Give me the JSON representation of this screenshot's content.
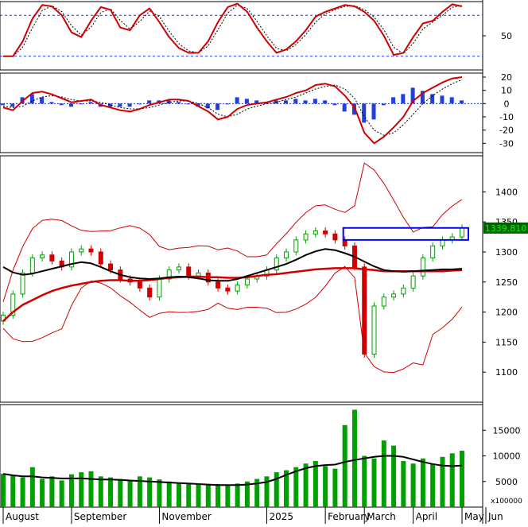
{
  "chart_data": {
    "type": "candlestick-multi-panel",
    "x_months": [
      "August",
      "September",
      "November",
      "2025",
      "February",
      "March",
      "April",
      "May",
      "Jun"
    ],
    "panels": [
      {
        "name": "stochastic",
        "y_ticks": [
          50
        ],
        "overbought": 80,
        "oversold": 20,
        "k_values": [
          20,
          20,
          42,
          75,
          95,
          93,
          80,
          55,
          48,
          72,
          92,
          88,
          62,
          58,
          80,
          90,
          70,
          48,
          32,
          25,
          25,
          42,
          70,
          92,
          97,
          85,
          62,
          42,
          25,
          30,
          42,
          58,
          78,
          85,
          90,
          95,
          93,
          85,
          72,
          50,
          22,
          25,
          48,
          68,
          72,
          85,
          96,
          93
        ]
      },
      {
        "name": "macd",
        "y_ticks": [
          20,
          10,
          0,
          -10,
          -20,
          -30
        ],
        "macd_values": [
          -3,
          -5,
          2,
          8,
          9,
          7,
          4,
          1,
          2,
          3,
          -1,
          -3,
          -5,
          -6,
          -4,
          -1,
          1,
          3,
          3,
          2,
          -2,
          -6,
          -12,
          -10,
          -4,
          -1,
          0,
          1,
          3,
          5,
          8,
          10,
          14,
          15,
          13,
          6,
          -3,
          -22,
          -30,
          -25,
          -18,
          -10,
          2,
          8,
          12,
          16,
          19,
          20
        ],
        "signal_values": [
          -2,
          -3,
          -2,
          2,
          5,
          6,
          5,
          3,
          2,
          2,
          1,
          -1,
          -3,
          -4,
          -4,
          -3,
          -1,
          1,
          2,
          2,
          0,
          -3,
          -8,
          -10,
          -8,
          -4,
          -2,
          0,
          1,
          3,
          5,
          8,
          11,
          13,
          14,
          11,
          4,
          -10,
          -20,
          -24,
          -22,
          -16,
          -8,
          0,
          6,
          11,
          15,
          18
        ]
      },
      {
        "name": "price",
        "y_ticks": [
          1100,
          1150,
          1200,
          1250,
          1300,
          1350,
          1400
        ],
        "last_price_label": "1339.810",
        "last_price": 1339.81,
        "resistance_zone": [
          1320,
          1340
        ],
        "close_values": [
          1195,
          1230,
          1265,
          1290,
          1295,
          1285,
          1275,
          1300,
          1305,
          1300,
          1280,
          1270,
          1255,
          1250,
          1240,
          1225,
          1255,
          1270,
          1275,
          1260,
          1265,
          1250,
          1240,
          1235,
          1245,
          1255,
          1260,
          1270,
          1290,
          1300,
          1320,
          1330,
          1335,
          1330,
          1320,
          1310,
          1275,
          1130,
          1210,
          1225,
          1230,
          1240,
          1260,
          1290,
          1310,
          1320,
          1325,
          1339.81
        ],
        "ma_long_values": [
          1185,
          1200,
          1212,
          1220,
          1228,
          1235,
          1240,
          1244,
          1247,
          1250,
          1252,
          1253,
          1253,
          1252,
          1252,
          1253,
          1255,
          1257,
          1258,
          1259,
          1259,
          1258,
          1258,
          1257,
          1257,
          1258,
          1260,
          1262,
          1263,
          1265,
          1267,
          1269,
          1271,
          1272,
          1273,
          1273,
          1273,
          1271,
          1270,
          1268,
          1268,
          1268,
          1268,
          1268,
          1268,
          1268,
          1269,
          1270
        ],
        "ma_mid_values": [
          1275,
          1266,
          1262,
          1264,
          1268,
          1272,
          1276,
          1280,
          1283,
          1281,
          1275,
          1268,
          1262,
          1258,
          1256,
          1255,
          1256,
          1258,
          1259,
          1258,
          1256,
          1253,
          1252,
          1252,
          1255,
          1260,
          1265,
          1270,
          1275,
          1280,
          1287,
          1295,
          1301,
          1305,
          1303,
          1298,
          1292,
          1284,
          1276,
          1270,
          1268,
          1267,
          1268,
          1269,
          1270,
          1271,
          1271,
          1272
        ]
      },
      {
        "name": "volume",
        "unit_label": "x100000",
        "y_ticks": [
          5000,
          10000,
          15000
        ],
        "volume_values": [
          6500,
          6200,
          5800,
          7800,
          5500,
          6000,
          5200,
          6400,
          6800,
          7000,
          6000,
          5800,
          5500,
          5200,
          6000,
          5800,
          5400,
          5000,
          4800,
          4600,
          4400,
          4300,
          4500,
          4200,
          4600,
          5000,
          5500,
          6000,
          6800,
          7200,
          7800,
          8500,
          9000,
          8000,
          7500,
          16000,
          19000,
          10000,
          9500,
          13000,
          12000,
          9000,
          8500,
          9500,
          8500,
          9800,
          10500,
          11000
        ],
        "ma_values": [
          6500,
          6200,
          6000,
          6000,
          5800,
          5700,
          5600,
          5600,
          5600,
          5500,
          5400,
          5400,
          5300,
          5200,
          5100,
          5000,
          4900,
          4800,
          4700,
          4600,
          4500,
          4400,
          4300,
          4300,
          4300,
          4400,
          4600,
          4900,
          5500,
          6300,
          7000,
          7600,
          8000,
          8200,
          8300,
          8800,
          9200,
          9500,
          9800,
          10000,
          10000,
          9800,
          9300,
          8800,
          8400,
          8100,
          8000,
          8100
        ]
      }
    ],
    "colors": {
      "up": "#00a000",
      "down": "#d00000",
      "signal": "#d00000",
      "line": "#000000",
      "hist_pos": "#1f3fe0",
      "hist_neg": "#1f3fe0",
      "bands": "#d00000",
      "zone": "#0000ee",
      "price_label_bg": "#006000",
      "price_label_fg": "#00ff00",
      "ref_line": "#2233cc"
    }
  }
}
